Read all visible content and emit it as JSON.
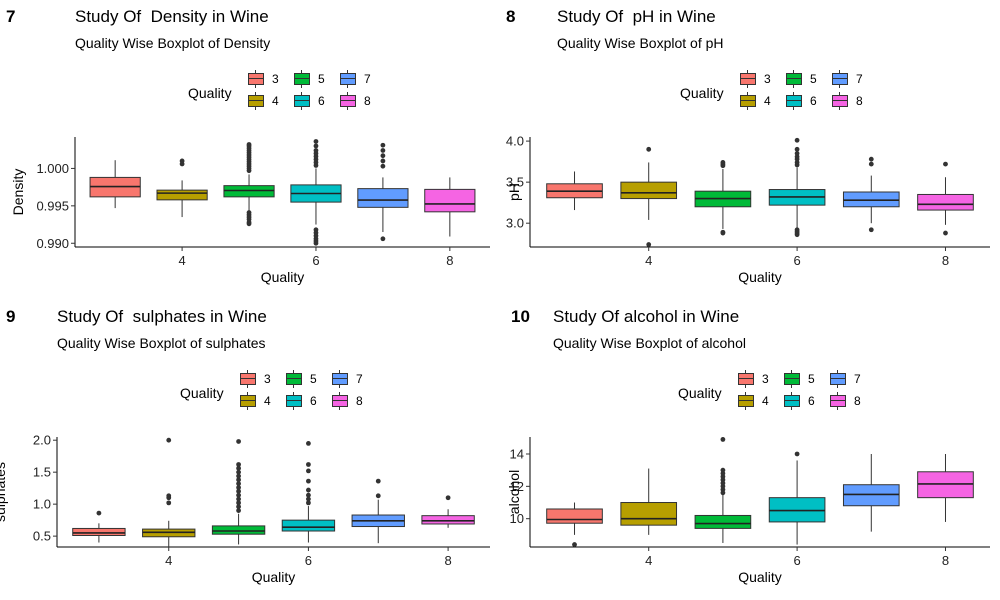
{
  "legend": {
    "title": "Quality",
    "levels": [
      "3",
      "4",
      "5",
      "6",
      "7",
      "8"
    ],
    "colors": [
      "#F8766D",
      "#B79F00",
      "#00BA38",
      "#00BFC4",
      "#619CFF",
      "#F564E3"
    ]
  },
  "panels": [
    {
      "tag": "7",
      "title": "Study Of  Density in Wine",
      "subtitle": "Quality Wise Boxplot of Density",
      "chart_data": {
        "type": "boxplot",
        "xlabel": "Quality",
        "ylabel": "Density",
        "xticks": [
          "4",
          "6",
          "8"
        ],
        "xlim": [
          2.4,
          8.6
        ],
        "yticks": [
          "0.990",
          "0.995",
          "1.000"
        ],
        "ylim": [
          0.9895,
          1.0042
        ],
        "grid": false,
        "categories": [
          "3",
          "4",
          "5",
          "6",
          "7",
          "8"
        ],
        "boxes": [
          {
            "quality": 3,
            "min": 0.9947,
            "q1": 0.9962,
            "median": 0.99757,
            "q3": 0.9988,
            "max": 1.0011,
            "outliers": []
          },
          {
            "quality": 4,
            "min": 0.9935,
            "q1": 0.9958,
            "median": 0.9967,
            "q3": 0.9971,
            "max": 0.9984,
            "outliers": [
              1.0006,
              1.001
            ]
          },
          {
            "quality": 5,
            "min": 0.9944,
            "q1": 0.9962,
            "median": 0.99705,
            "q3": 0.9977,
            "max": 0.9992,
            "outliers": [
              0.9926,
              0.9928,
              0.9932,
              0.9935,
              0.9938,
              0.9941,
              0.9997,
              1.0,
              1.0003,
              1.0006,
              1.0009,
              1.0012,
              1.0015,
              1.0018,
              1.0021,
              1.0024,
              1.0027,
              1.003,
              1.0032
            ]
          },
          {
            "quality": 6,
            "min": 0.9925,
            "q1": 0.9955,
            "median": 0.99665,
            "q3": 0.9978,
            "max": 1.0,
            "outliers": [
              0.99,
              0.9903,
              0.9906,
              0.991,
              0.9914,
              0.9918,
              1.0004,
              1.0008,
              1.0012,
              1.0016,
              1.002,
              1.0024,
              1.003,
              1.0036
            ]
          },
          {
            "quality": 7,
            "min": 0.9915,
            "q1": 0.9948,
            "median": 0.99577,
            "q3": 0.9973,
            "max": 0.9988,
            "outliers": [
              0.9906,
              1.0003,
              1.001,
              1.0017,
              1.0024,
              1.0031
            ]
          },
          {
            "quality": 8,
            "min": 0.9909,
            "q1": 0.9942,
            "median": 0.99525,
            "q3": 0.9972,
            "max": 0.9988,
            "outliers": []
          }
        ]
      }
    },
    {
      "tag": "8",
      "title": "Study Of  pH in Wine",
      "subtitle": "Quality Wise Boxplot of pH",
      "chart_data": {
        "type": "boxplot",
        "xlabel": "Quality",
        "ylabel": "pH",
        "xticks": [
          "4",
          "6",
          "8"
        ],
        "xlim": [
          2.4,
          8.6
        ],
        "yticks": [
          "3.0",
          "3.5",
          "4.0"
        ],
        "ylim": [
          2.71,
          4.05
        ],
        "grid": false,
        "categories": [
          "3",
          "4",
          "5",
          "6",
          "7",
          "8"
        ],
        "boxes": [
          {
            "quality": 3,
            "min": 3.16,
            "q1": 3.31,
            "median": 3.39,
            "q3": 3.48,
            "max": 3.63,
            "outliers": []
          },
          {
            "quality": 4,
            "min": 3.04,
            "q1": 3.3,
            "median": 3.37,
            "q3": 3.5,
            "max": 3.74,
            "outliers": [
              2.74,
              3.9
            ]
          },
          {
            "quality": 5,
            "min": 2.93,
            "q1": 3.2,
            "median": 3.3,
            "q3": 3.39,
            "max": 3.66,
            "outliers": [
              2.88,
              2.89,
              3.7,
              3.72,
              3.74
            ]
          },
          {
            "quality": 6,
            "min": 2.94,
            "q1": 3.22,
            "median": 3.32,
            "q3": 3.41,
            "max": 3.68,
            "outliers": [
              2.86,
              2.88,
              2.9,
              2.92,
              3.71,
              3.74,
              3.78,
              3.81,
              3.85,
              3.9,
              4.01
            ]
          },
          {
            "quality": 7,
            "min": 3.0,
            "q1": 3.2,
            "median": 3.28,
            "q3": 3.38,
            "max": 3.58,
            "outliers": [
              2.92,
              3.72,
              3.78
            ]
          },
          {
            "quality": 8,
            "min": 2.98,
            "q1": 3.16,
            "median": 3.23,
            "q3": 3.35,
            "max": 3.56,
            "outliers": [
              2.88,
              3.72
            ]
          }
        ]
      }
    },
    {
      "tag": "9",
      "title": "Study Of  sulphates in Wine",
      "subtitle": "Quality Wise Boxplot of sulphates",
      "chart_data": {
        "type": "boxplot",
        "xlabel": "Quality",
        "ylabel": "sulphates",
        "xticks": [
          "4",
          "6",
          "8"
        ],
        "xlim": [
          2.4,
          8.6
        ],
        "yticks": [
          "0.5",
          "1.0",
          "1.5",
          "2.0"
        ],
        "ylim": [
          0.33,
          2.05
        ],
        "grid": false,
        "categories": [
          "3",
          "4",
          "5",
          "6",
          "7",
          "8"
        ],
        "boxes": [
          {
            "quality": 3,
            "min": 0.4,
            "q1": 0.51,
            "median": 0.55,
            "q3": 0.62,
            "max": 0.7,
            "outliers": [
              0.86
            ]
          },
          {
            "quality": 4,
            "min": 0.33,
            "q1": 0.49,
            "median": 0.56,
            "q3": 0.61,
            "max": 0.74,
            "outliers": [
              1.02,
              1.1,
              1.13,
              2.0
            ]
          },
          {
            "quality": 5,
            "min": 0.37,
            "q1": 0.53,
            "median": 0.58,
            "q3": 0.66,
            "max": 0.85,
            "outliers": [
              0.9,
              0.96,
              1.02,
              1.08,
              1.14,
              1.2,
              1.26,
              1.32,
              1.38,
              1.44,
              1.5,
              1.56,
              1.62,
              1.98
            ]
          },
          {
            "quality": 6,
            "min": 0.4,
            "q1": 0.58,
            "median": 0.64,
            "q3": 0.75,
            "max": 0.97,
            "outliers": [
              1.02,
              1.08,
              1.14,
              1.22,
              1.36,
              1.52,
              1.62,
              1.95
            ]
          },
          {
            "quality": 7,
            "min": 0.39,
            "q1": 0.65,
            "median": 0.74,
            "q3": 0.83,
            "max": 1.07,
            "outliers": [
              1.13,
              1.36
            ]
          },
          {
            "quality": 8,
            "min": 0.63,
            "q1": 0.69,
            "median": 0.74,
            "q3": 0.82,
            "max": 0.92,
            "outliers": [
              1.1
            ]
          }
        ]
      }
    },
    {
      "tag": "10",
      "title": "Study Of alcohol in Wine",
      "subtitle": "Quality Wise Boxplot of alcohol",
      "chart_data": {
        "type": "boxplot",
        "xlabel": "Quality",
        "ylabel": "alcohol",
        "xticks": [
          "4",
          "6",
          "8"
        ],
        "xlim": [
          2.4,
          8.6
        ],
        "yticks": [
          "10",
          "12",
          "14"
        ],
        "ylim": [
          8.25,
          15.05
        ],
        "grid": false,
        "categories": [
          "3",
          "4",
          "5",
          "6",
          "7",
          "8"
        ],
        "boxes": [
          {
            "quality": 3,
            "min": 9.0,
            "q1": 9.72,
            "median": 9.95,
            "q3": 10.6,
            "max": 11.0,
            "outliers": [
              8.4
            ]
          },
          {
            "quality": 4,
            "min": 9.0,
            "q1": 9.6,
            "median": 10.0,
            "q3": 11.0,
            "max": 13.1,
            "outliers": []
          },
          {
            "quality": 5,
            "min": 8.5,
            "q1": 9.4,
            "median": 9.7,
            "q3": 10.2,
            "max": 11.5,
            "outliers": [
              11.6,
              11.8,
              12.0,
              12.2,
              12.4,
              12.6,
              12.8,
              13.0,
              14.9
            ]
          },
          {
            "quality": 6,
            "min": 8.4,
            "q1": 9.8,
            "median": 10.5,
            "q3": 11.3,
            "max": 13.6,
            "outliers": [
              14.0
            ]
          },
          {
            "quality": 7,
            "min": 9.2,
            "q1": 10.8,
            "median": 11.5,
            "q3": 12.1,
            "max": 14.0,
            "outliers": []
          },
          {
            "quality": 8,
            "min": 9.8,
            "q1": 11.3,
            "median": 12.15,
            "q3": 12.9,
            "max": 14.0,
            "outliers": []
          }
        ]
      }
    }
  ]
}
